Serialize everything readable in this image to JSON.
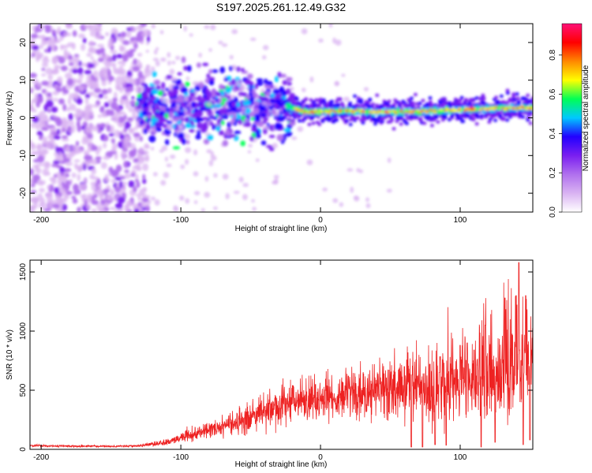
{
  "title": "S197.2025.261.12.49.G32",
  "chart_data": [
    {
      "type": "heatmap",
      "name": "spectrogram",
      "xlabel": "Height of straight line (km)",
      "ylabel": "Frequency (Hz)",
      "xlim": [
        -208,
        152
      ],
      "ylim": [
        -25,
        25
      ],
      "xticks": [
        -200,
        -100,
        0,
        100
      ],
      "yticks": [
        -20,
        -10,
        0,
        10,
        20
      ],
      "colorbar": {
        "label": "Normalized spectral amplitude",
        "range": [
          0.0,
          0.96
        ],
        "ticks": [
          "0.0",
          "0.2",
          "0.4",
          "0.6",
          "0.8"
        ],
        "tick_values": [
          0.0,
          0.2,
          0.4,
          0.6,
          0.8
        ],
        "colors": [
          "#ffffff",
          "#d9b3f2",
          "#b070ee",
          "#7a1ff0",
          "#2200ff",
          "#00c8ff",
          "#00ff55",
          "#ffff00",
          "#ff8800",
          "#ff0000",
          "#ff1077"
        ]
      },
      "line_center_hz": [
        [
          -25,
          3.5
        ],
        [
          -20,
          2.5
        ],
        [
          -10,
          1.5
        ],
        [
          0,
          1.7
        ],
        [
          20,
          1.8
        ],
        [
          40,
          1.6
        ],
        [
          60,
          1.7
        ],
        [
          80,
          1.8
        ],
        [
          90,
          2.0
        ],
        [
          100,
          2.2
        ],
        [
          120,
          2.4
        ],
        [
          130,
          2.6
        ],
        [
          150,
          2.6
        ]
      ]
    },
    {
      "type": "line",
      "name": "snr",
      "xlabel": "Height of straight line (km)",
      "ylabel": "SNR (10 * v/v)",
      "xlim": [
        -208,
        152
      ],
      "ylim": [
        0,
        1600
      ],
      "xticks": [
        -200,
        -100,
        0,
        100
      ],
      "yticks": [
        0,
        500,
        1000,
        1500
      ],
      "color": "#ee2222",
      "envelope_points": [
        [
          -208,
          30
        ],
        [
          -150,
          25
        ],
        [
          -130,
          30
        ],
        [
          -110,
          60
        ],
        [
          -100,
          100
        ],
        [
          -80,
          160
        ],
        [
          -60,
          230
        ],
        [
          -40,
          320
        ],
        [
          -20,
          400
        ],
        [
          0,
          440
        ],
        [
          20,
          480
        ],
        [
          40,
          500
        ],
        [
          60,
          520
        ],
        [
          80,
          540
        ],
        [
          100,
          560
        ],
        [
          120,
          620
        ],
        [
          140,
          680
        ],
        [
          152,
          700
        ]
      ],
      "peak_points": [
        [
          -40,
          360
        ],
        [
          -20,
          540
        ],
        [
          20,
          620
        ],
        [
          60,
          700
        ],
        [
          85,
          650
        ],
        [
          100,
          880
        ],
        [
          105,
          900
        ],
        [
          110,
          840
        ],
        [
          118,
          1050
        ],
        [
          125,
          1150
        ],
        [
          132,
          1280
        ],
        [
          140,
          1300
        ],
        [
          142,
          1580
        ],
        [
          147,
          1300
        ]
      ],
      "dip_points": [
        [
          65,
          20
        ],
        [
          73,
          20
        ],
        [
          82,
          40
        ],
        [
          90,
          35
        ],
        [
          115,
          20
        ],
        [
          125,
          60
        ],
        [
          145,
          40
        ],
        [
          150,
          80
        ]
      ]
    }
  ]
}
